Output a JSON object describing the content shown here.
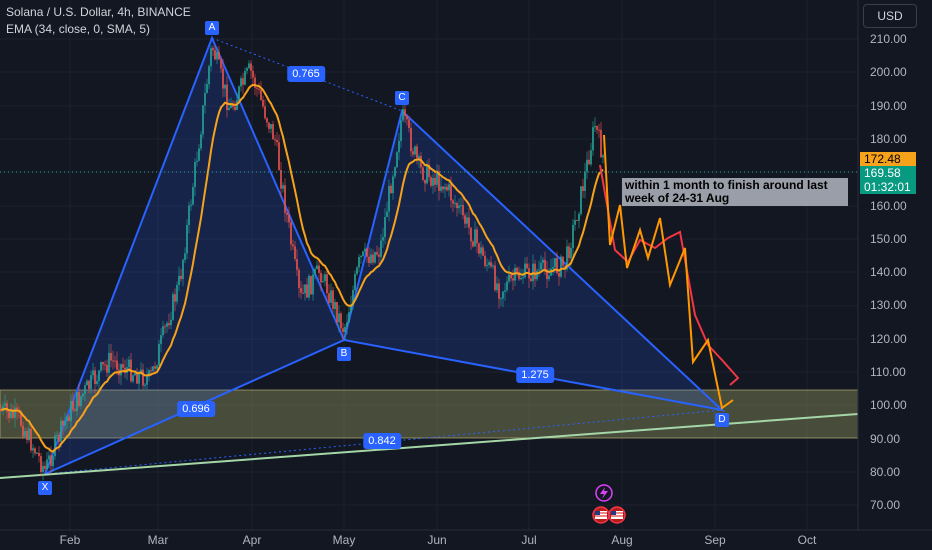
{
  "header": {
    "symbol_line": "Solana / U.S. Dollar, 4h, BINANCE",
    "indicator_line": "EMA (34, close, 0, SMA, 5)"
  },
  "currency_button": "USD",
  "y_axis_ticks": [
    "210.00",
    "200.00",
    "190.00",
    "180.00",
    "170.00",
    "160.00",
    "150.00",
    "140.00",
    "130.00",
    "120.00",
    "110.00",
    "100.00",
    "90.00",
    "80.00",
    "70.00"
  ],
  "x_axis_ticks": [
    "Feb",
    "Mar",
    "Apr",
    "May",
    "Jun",
    "Jul",
    "Aug",
    "Sep",
    "Oct"
  ],
  "price_labels": {
    "last_price": "172.48",
    "current_price": "169.58",
    "countdown": "01:32:01"
  },
  "pattern_points": {
    "X": "X",
    "A": "A",
    "B": "B",
    "C": "C",
    "D": "D"
  },
  "fib_ratios": {
    "xa_ab": "0.765",
    "bc_cd": "1.275",
    "xb": "0.696",
    "xd": "0.842"
  },
  "annotation_text": "within 1 month to finish around last week of 24-31 Aug",
  "colors": {
    "background": "#131722",
    "pattern_blue": "#2962ff",
    "ema_orange": "#f7a21b",
    "candle_up": "#26a69a",
    "candle_down": "#ef5350",
    "zone_fill": "#8a8e5a",
    "trendline_green": "#a5d6a7",
    "projection_red": "#f23645",
    "projection_orange": "#ff9800"
  },
  "icons": [
    "lightning-icon",
    "us-flag-icon"
  ]
}
